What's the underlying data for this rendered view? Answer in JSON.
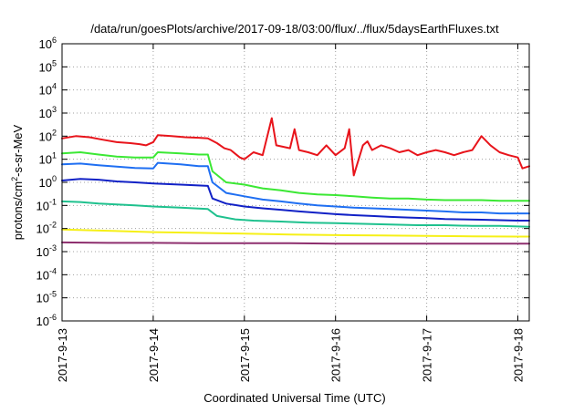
{
  "chart_data": {
    "type": "line",
    "title": "/data/run/goesPlots/archive/2017-09-18/03:00/flux/../flux/5daysEarthFluxes.txt",
    "xlabel": "Coordinated Universal Time (UTC)",
    "ylabel_prefix": "protons/cm",
    "ylabel_sup": "2",
    "ylabel_suffix": "-s-sr-MeV",
    "yscale": "log",
    "ylim": [
      1e-06,
      1000000.0
    ],
    "y_ticks": [
      {
        "base": "10",
        "exp": "-6",
        "value": 1e-06
      },
      {
        "base": "10",
        "exp": "-5",
        "value": 1e-05
      },
      {
        "base": "10",
        "exp": "-4",
        "value": 0.0001
      },
      {
        "base": "10",
        "exp": "-3",
        "value": 0.001
      },
      {
        "base": "10",
        "exp": "-2",
        "value": 0.01
      },
      {
        "base": "10",
        "exp": "-1",
        "value": 0.1
      },
      {
        "base": "10",
        "exp": "0",
        "value": 1
      },
      {
        "base": "10",
        "exp": "1",
        "value": 10
      },
      {
        "base": "10",
        "exp": "2",
        "value": 100
      },
      {
        "base": "10",
        "exp": "3",
        "value": 1000
      },
      {
        "base": "10",
        "exp": "4",
        "value": 10000
      },
      {
        "base": "10",
        "exp": "5",
        "value": 100000
      },
      {
        "base": "10",
        "exp": "6",
        "value": 1000000
      }
    ],
    "xlim": [
      "2017-09-13 00:00",
      "2017-09-18 03:00"
    ],
    "x_ticks": [
      {
        "label": "2017-9-13",
        "day": 0
      },
      {
        "label": "2017-9-14",
        "day": 1
      },
      {
        "label": "2017-9-15",
        "day": 2
      },
      {
        "label": "2017-9-16",
        "day": 3
      },
      {
        "label": "2017-9-17",
        "day": 4
      },
      {
        "label": "2017-9-18",
        "day": 5
      }
    ],
    "x_range_days": [
      0,
      5.125
    ],
    "grid": true,
    "series": [
      {
        "color": "#e8141b",
        "points": [
          [
            0,
            80
          ],
          [
            0.15,
            100
          ],
          [
            0.3,
            90
          ],
          [
            0.45,
            70
          ],
          [
            0.6,
            55
          ],
          [
            0.75,
            50
          ],
          [
            0.85,
            45
          ],
          [
            0.92,
            40
          ],
          [
            1.0,
            55
          ],
          [
            1.05,
            110
          ],
          [
            1.2,
            100
          ],
          [
            1.35,
            90
          ],
          [
            1.5,
            85
          ],
          [
            1.6,
            80
          ],
          [
            1.7,
            50
          ],
          [
            1.78,
            30
          ],
          [
            1.85,
            25
          ],
          [
            1.95,
            12
          ],
          [
            2.0,
            10
          ],
          [
            2.1,
            20
          ],
          [
            2.2,
            15
          ],
          [
            2.3,
            600
          ],
          [
            2.35,
            40
          ],
          [
            2.5,
            30
          ],
          [
            2.55,
            200
          ],
          [
            2.6,
            25
          ],
          [
            2.7,
            20
          ],
          [
            2.8,
            15
          ],
          [
            2.9,
            40
          ],
          [
            3.0,
            15
          ],
          [
            3.1,
            30
          ],
          [
            3.15,
            200
          ],
          [
            3.2,
            2
          ],
          [
            3.3,
            40
          ],
          [
            3.35,
            60
          ],
          [
            3.4,
            25
          ],
          [
            3.5,
            40
          ],
          [
            3.6,
            30
          ],
          [
            3.7,
            20
          ],
          [
            3.8,
            25
          ],
          [
            3.9,
            15
          ],
          [
            4.0,
            20
          ],
          [
            4.1,
            25
          ],
          [
            4.2,
            20
          ],
          [
            4.3,
            15
          ],
          [
            4.4,
            20
          ],
          [
            4.5,
            25
          ],
          [
            4.6,
            100
          ],
          [
            4.7,
            40
          ],
          [
            4.8,
            20
          ],
          [
            4.9,
            15
          ],
          [
            5.0,
            12
          ],
          [
            5.05,
            4
          ],
          [
            5.125,
            5
          ]
        ]
      },
      {
        "color": "#3be834",
        "points": [
          [
            0,
            18
          ],
          [
            0.2,
            20
          ],
          [
            0.4,
            16
          ],
          [
            0.6,
            13
          ],
          [
            0.8,
            12
          ],
          [
            1.0,
            12
          ],
          [
            1.05,
            20
          ],
          [
            1.3,
            18
          ],
          [
            1.5,
            16
          ],
          [
            1.6,
            16
          ],
          [
            1.65,
            3
          ],
          [
            1.8,
            1
          ],
          [
            2.0,
            0.8
          ],
          [
            2.2,
            0.55
          ],
          [
            2.4,
            0.45
          ],
          [
            2.6,
            0.35
          ],
          [
            2.8,
            0.3
          ],
          [
            3.0,
            0.28
          ],
          [
            3.2,
            0.25
          ],
          [
            3.4,
            0.22
          ],
          [
            3.6,
            0.2
          ],
          [
            3.8,
            0.2
          ],
          [
            4.0,
            0.18
          ],
          [
            4.2,
            0.17
          ],
          [
            4.4,
            0.17
          ],
          [
            4.6,
            0.17
          ],
          [
            4.8,
            0.16
          ],
          [
            5.0,
            0.16
          ],
          [
            5.125,
            0.16
          ]
        ]
      },
      {
        "color": "#1f6ff2",
        "points": [
          [
            0,
            6
          ],
          [
            0.2,
            6.5
          ],
          [
            0.4,
            5.5
          ],
          [
            0.6,
            4.8
          ],
          [
            0.8,
            4.2
          ],
          [
            1.0,
            4
          ],
          [
            1.05,
            7
          ],
          [
            1.3,
            6
          ],
          [
            1.5,
            5
          ],
          [
            1.6,
            5
          ],
          [
            1.65,
            1
          ],
          [
            1.8,
            0.35
          ],
          [
            2.0,
            0.25
          ],
          [
            2.2,
            0.18
          ],
          [
            2.4,
            0.15
          ],
          [
            2.6,
            0.12
          ],
          [
            2.8,
            0.1
          ],
          [
            3.0,
            0.09
          ],
          [
            3.2,
            0.08
          ],
          [
            3.4,
            0.075
          ],
          [
            3.6,
            0.07
          ],
          [
            3.8,
            0.065
          ],
          [
            4.0,
            0.06
          ],
          [
            4.2,
            0.055
          ],
          [
            4.4,
            0.05
          ],
          [
            4.6,
            0.05
          ],
          [
            4.8,
            0.045
          ],
          [
            5.0,
            0.045
          ],
          [
            5.125,
            0.045
          ]
        ]
      },
      {
        "color": "#1121c6",
        "points": [
          [
            0,
            1.2
          ],
          [
            0.2,
            1.4
          ],
          [
            0.4,
            1.3
          ],
          [
            0.6,
            1.1
          ],
          [
            0.8,
            1.0
          ],
          [
            1.0,
            0.9
          ],
          [
            1.3,
            0.8
          ],
          [
            1.6,
            0.7
          ],
          [
            1.65,
            0.2
          ],
          [
            1.8,
            0.12
          ],
          [
            2.0,
            0.09
          ],
          [
            2.2,
            0.075
          ],
          [
            2.4,
            0.065
          ],
          [
            2.6,
            0.055
          ],
          [
            2.8,
            0.048
          ],
          [
            3.0,
            0.042
          ],
          [
            3.2,
            0.038
          ],
          [
            3.4,
            0.035
          ],
          [
            3.6,
            0.032
          ],
          [
            3.8,
            0.03
          ],
          [
            4.0,
            0.028
          ],
          [
            4.2,
            0.026
          ],
          [
            4.4,
            0.025
          ],
          [
            4.6,
            0.024
          ],
          [
            4.8,
            0.023
          ],
          [
            5.0,
            0.022
          ],
          [
            5.125,
            0.022
          ]
        ]
      },
      {
        "color": "#1fc18e",
        "points": [
          [
            0,
            0.15
          ],
          [
            0.2,
            0.14
          ],
          [
            0.4,
            0.12
          ],
          [
            0.6,
            0.11
          ],
          [
            0.8,
            0.1
          ],
          [
            1.0,
            0.09
          ],
          [
            1.3,
            0.08
          ],
          [
            1.6,
            0.07
          ],
          [
            1.7,
            0.035
          ],
          [
            1.9,
            0.025
          ],
          [
            2.1,
            0.022
          ],
          [
            2.4,
            0.02
          ],
          [
            2.7,
            0.018
          ],
          [
            3.0,
            0.017
          ],
          [
            3.3,
            0.016
          ],
          [
            3.6,
            0.015
          ],
          [
            3.9,
            0.014
          ],
          [
            4.2,
            0.014
          ],
          [
            4.5,
            0.013
          ],
          [
            4.8,
            0.013
          ],
          [
            5.125,
            0.012
          ]
        ]
      },
      {
        "color": "#f6f018",
        "points": [
          [
            0,
            0.009
          ],
          [
            0.5,
            0.008
          ],
          [
            1.0,
            0.007
          ],
          [
            1.5,
            0.0065
          ],
          [
            2.0,
            0.006
          ],
          [
            2.5,
            0.0055
          ],
          [
            3.0,
            0.0052
          ],
          [
            3.5,
            0.005
          ],
          [
            4.0,
            0.0048
          ],
          [
            4.5,
            0.0046
          ],
          [
            5.0,
            0.0045
          ],
          [
            5.125,
            0.0045
          ]
        ]
      },
      {
        "color": "#8e2f6e",
        "points": [
          [
            0,
            0.0025
          ],
          [
            0.5,
            0.0024
          ],
          [
            1.0,
            0.0024
          ],
          [
            1.5,
            0.0023
          ],
          [
            2.0,
            0.0023
          ],
          [
            2.5,
            0.0023
          ],
          [
            3.0,
            0.0022
          ],
          [
            3.5,
            0.0022
          ],
          [
            4.0,
            0.0022
          ],
          [
            4.5,
            0.0022
          ],
          [
            5.0,
            0.0022
          ],
          [
            5.125,
            0.0022
          ]
        ]
      }
    ]
  }
}
